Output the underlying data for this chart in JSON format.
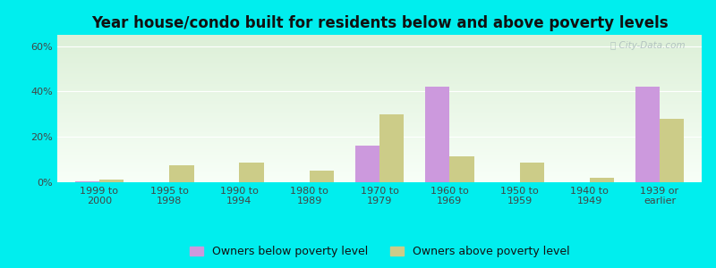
{
  "title": "Year house/condo built for residents below and above poverty levels",
  "categories": [
    "1999 to\n2000",
    "1995 to\n1998",
    "1990 to\n1994",
    "1980 to\n1989",
    "1970 to\n1979",
    "1960 to\n1969",
    "1950 to\n1959",
    "1940 to\n1949",
    "1939 or\nearlier"
  ],
  "below_poverty": [
    0.5,
    0.0,
    0.0,
    0.0,
    16.0,
    42.0,
    0.0,
    0.0,
    42.0
  ],
  "above_poverty": [
    1.0,
    7.5,
    8.5,
    5.0,
    30.0,
    11.5,
    8.5,
    2.0,
    28.0
  ],
  "below_color": "#cc99dd",
  "above_color": "#cccc88",
  "background_color": "#00eeee",
  "plot_bg_top": "#ddf0d8",
  "plot_bg_bottom": "#f8fff8",
  "ylim": [
    0,
    65
  ],
  "yticks": [
    0,
    20,
    40,
    60
  ],
  "legend_below": "Owners below poverty level",
  "legend_above": "Owners above poverty level",
  "bar_width": 0.35,
  "title_fontsize": 12,
  "tick_fontsize": 8,
  "legend_fontsize": 9
}
